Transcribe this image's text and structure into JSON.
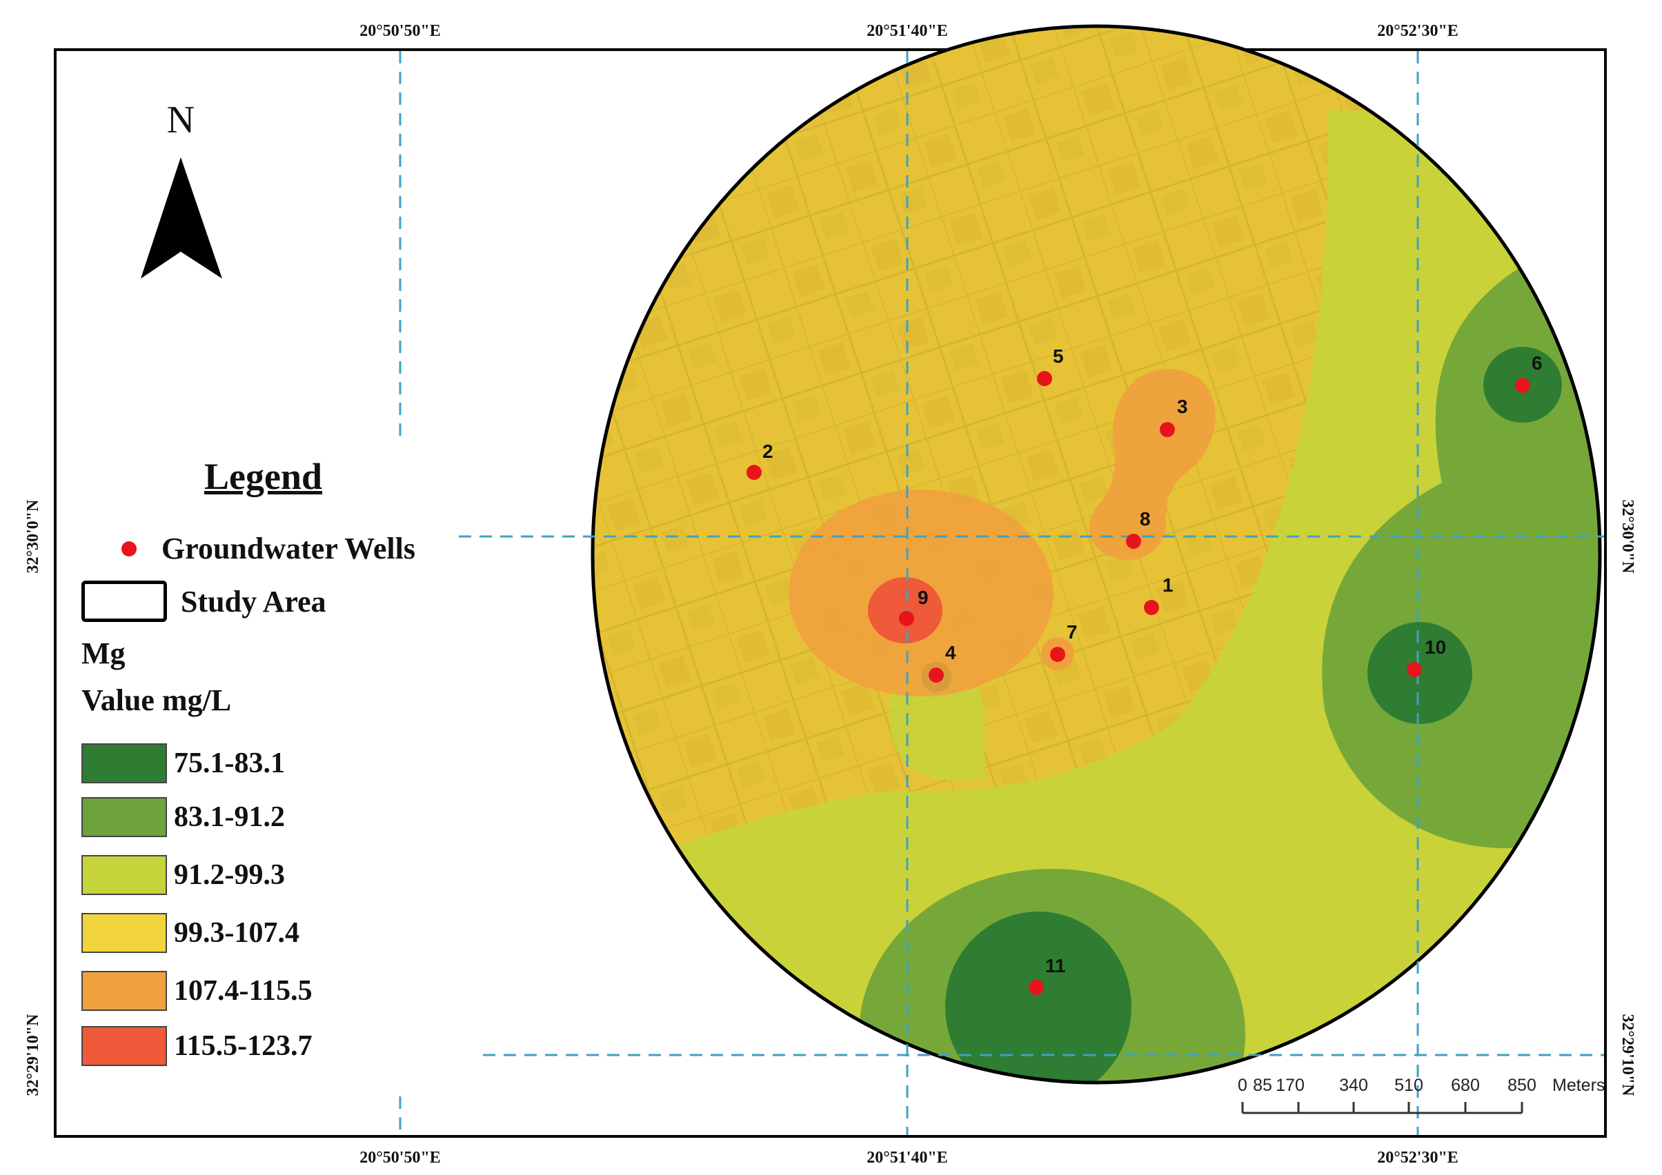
{
  "coordinates": {
    "top_ticks": [
      "20°50'50\"E",
      "20°51'40\"E",
      "20°52'30\"E"
    ],
    "bottom_ticks": [
      "20°50'50\"E",
      "20°51'40\"E",
      "20°52'30\"E"
    ],
    "left_ticks": [
      "32°30'0\"N",
      "32°29'10\"N"
    ],
    "right_ticks": [
      "32°30'0\"N",
      "32°29'10\"N"
    ]
  },
  "north_arrow": {
    "label": "N",
    "icon": "north-arrow-icon"
  },
  "legend": {
    "title": "Legend",
    "wells_label": "Groundwater Wells",
    "study_area_label": "Study Area",
    "parameter": "Mg",
    "unit_label": "Value mg/L",
    "classes": [
      {
        "label": "75.1-83.1",
        "color": "#2e7d32"
      },
      {
        "label": "83.1-91.2",
        "color": "#6da33a"
      },
      {
        "label": "91.2-99.3",
        "color": "#c5d43a"
      },
      {
        "label": "99.3-107.4",
        "color": "#f2d43c"
      },
      {
        "label": "107.4-115.5",
        "color": "#f0a13e"
      },
      {
        "label": "115.5-123.7",
        "color": "#ee5a3a"
      }
    ]
  },
  "wells": [
    {
      "id": "1"
    },
    {
      "id": "2"
    },
    {
      "id": "3"
    },
    {
      "id": "4"
    },
    {
      "id": "5"
    },
    {
      "id": "6"
    },
    {
      "id": "7"
    },
    {
      "id": "8"
    },
    {
      "id": "9"
    },
    {
      "id": "10"
    },
    {
      "id": "11"
    }
  ],
  "scale_bar": {
    "labels": [
      "0",
      "85",
      "170",
      "340",
      "510",
      "680",
      "850"
    ],
    "unit": "Meters"
  }
}
